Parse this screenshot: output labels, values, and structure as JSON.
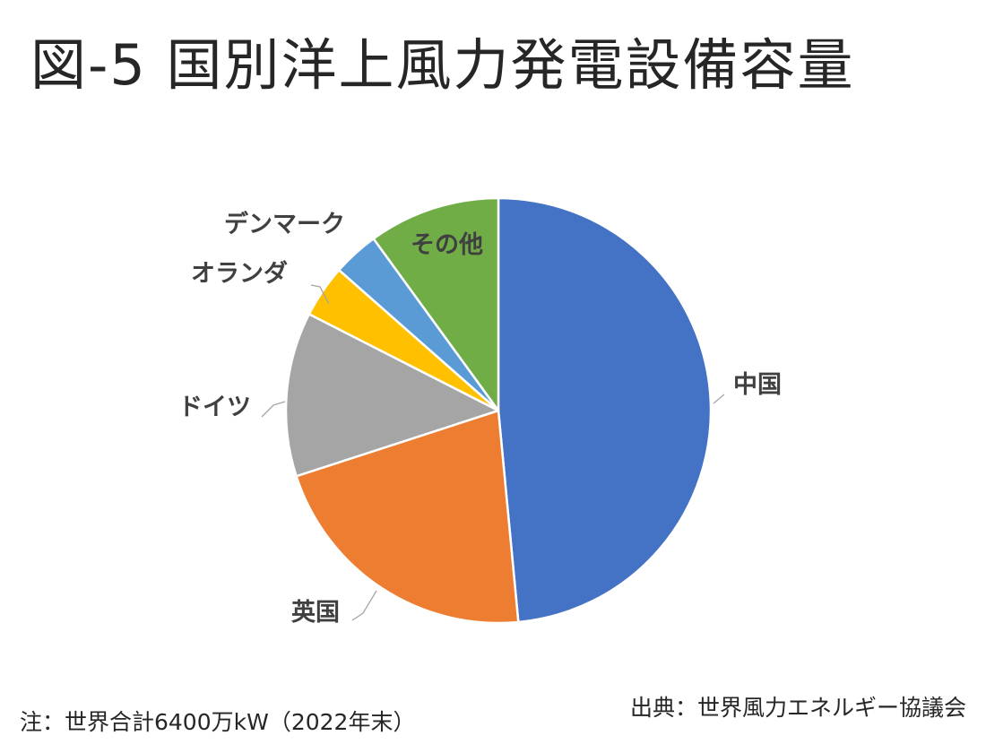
{
  "title": "図-5 国別洋上風力発電設備容量",
  "chart_data": {
    "type": "pie",
    "title": "",
    "start_angle_deg": 0,
    "direction": "clockwise",
    "slices": [
      {
        "label": "中国",
        "value": 48.5,
        "color": "#4472C4"
      },
      {
        "label": "英国",
        "value": 21.5,
        "color": "#ED7D31"
      },
      {
        "label": "ドイツ",
        "value": 12.5,
        "color": "#A5A5A5"
      },
      {
        "label": "オランダ",
        "value": 4.0,
        "color": "#FFC000"
      },
      {
        "label": "デンマーク",
        "value": 3.5,
        "color": "#5B9BD5"
      },
      {
        "label": "その他",
        "value": 10.0,
        "color": "#70AD47"
      }
    ]
  },
  "footnote": "注：世界合計6400万kW（2022年末）",
  "source": "出典：世界風力エネルギー協議会"
}
